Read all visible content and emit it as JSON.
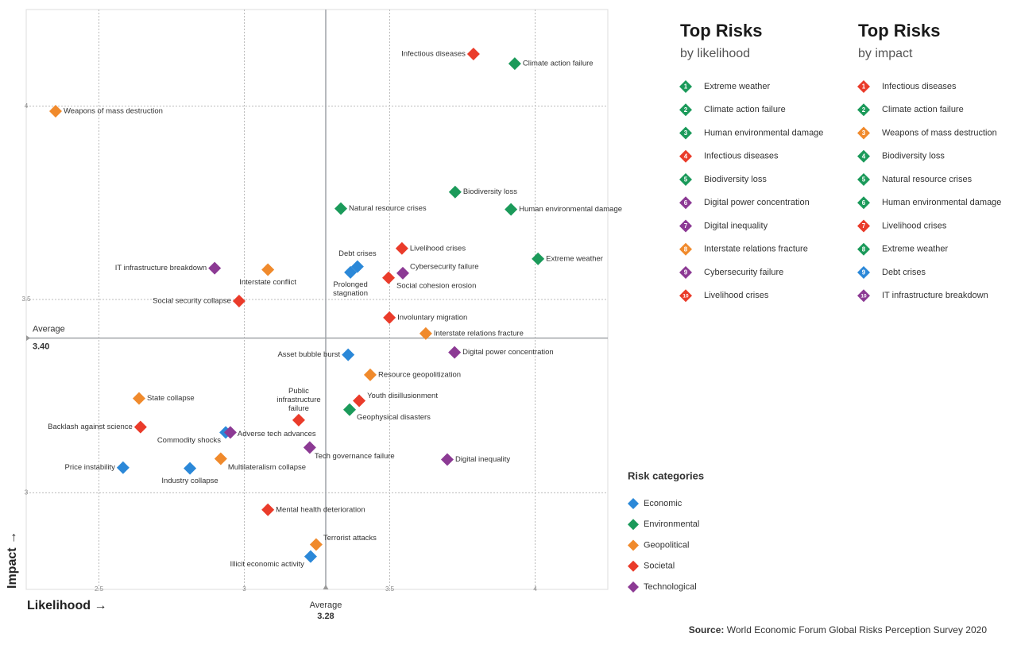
{
  "chart_data": {
    "type": "scatter",
    "x_label": "Likelihood →",
    "y_label": "Impact →",
    "xlim": [
      2.25,
      4.25
    ],
    "ylim": [
      2.75,
      4.25
    ],
    "xticks": [
      2.5,
      3,
      3.5,
      4
    ],
    "yticks": [
      3,
      3.5,
      4
    ],
    "grid": true,
    "average_label": "Average",
    "x_average": 3.28,
    "y_average": {
      "value": 3.4,
      "label": "3.40"
    },
    "legend_title": "Risk categories",
    "series": [
      {
        "name": "Economic",
        "color": "#2b88d8",
        "labels": [
          "Debt crises",
          "Prolonged stagnation",
          "Asset bubble burst",
          "Commodity shocks",
          "Price instability",
          "Industry collapse",
          "Illicit economic activity"
        ],
        "x": [
          3.389,
          3.365,
          3.357,
          2.936,
          2.583,
          2.813,
          3.228
        ],
        "y": [
          3.585,
          3.57,
          3.357,
          3.156,
          3.065,
          3.063,
          2.835
        ]
      },
      {
        "name": "Environmental",
        "color": "#1b9a5a",
        "labels": [
          "Climate action failure",
          "Biodiversity loss",
          "Natural resource crises",
          "Human environmental damage",
          "Extreme weather",
          "Geophysical disasters"
        ],
        "x": [
          3.93,
          3.725,
          3.332,
          3.917,
          4.01,
          3.362
        ],
        "y": [
          4.11,
          3.778,
          3.735,
          3.733,
          3.605,
          3.215
        ]
      },
      {
        "name": "Geopolitical",
        "color": "#f08a2c",
        "labels": [
          "Weapons of mass destruction",
          "Interstate conflict",
          "Interstate relations fracture",
          "Resource geopolitization",
          "State collapse",
          "Multilateralism collapse",
          "Terrorist attacks"
        ],
        "x": [
          2.351,
          3.081,
          3.624,
          3.433,
          2.638,
          2.919,
          3.247
        ],
        "y": [
          3.987,
          3.577,
          3.412,
          3.305,
          3.244,
          3.088,
          2.866
        ]
      },
      {
        "name": "Societal",
        "color": "#ea3b2a",
        "labels": [
          "Infectious diseases",
          "Livelihood crises",
          "Social cohesion erosion",
          "Social security collapse",
          "Involuntary migration",
          "Youth disillusionment",
          "Public infrastructure failure",
          "Backlash against science",
          "Mental health deterioration"
        ],
        "x": [
          3.788,
          3.542,
          3.496,
          2.982,
          3.499,
          3.395,
          3.187,
          2.643,
          3.081
        ],
        "y": [
          4.135,
          3.632,
          3.556,
          3.496,
          3.453,
          3.238,
          3.188,
          3.17,
          2.956
        ]
      },
      {
        "name": "Technological",
        "color": "#8c3a94",
        "labels": [
          "IT infrastructure breakdown",
          "Cybersecurity failure",
          "Digital power concentration",
          "Adverse tech advances",
          "Tech governance failure",
          "Digital inequality"
        ],
        "x": [
          2.898,
          3.545,
          3.723,
          2.952,
          3.225,
          3.698
        ],
        "y": [
          3.581,
          3.568,
          3.363,
          3.156,
          3.117,
          3.086
        ]
      }
    ],
    "top_risks": [
      {
        "title": "Top Risks",
        "subtitle": "by likelihood",
        "items": [
          {
            "rank": 1,
            "name": "Extreme weather",
            "color": "#1b9a5a"
          },
          {
            "rank": 2,
            "name": "Climate action failure",
            "color": "#1b9a5a"
          },
          {
            "rank": 3,
            "name": "Human environmental damage",
            "color": "#1b9a5a"
          },
          {
            "rank": 4,
            "name": "Infectious diseases",
            "color": "#ea3b2a"
          },
          {
            "rank": 5,
            "name": "Biodiversity loss",
            "color": "#1b9a5a"
          },
          {
            "rank": 6,
            "name": "Digital power concentration",
            "color": "#8c3a94"
          },
          {
            "rank": 7,
            "name": "Digital inequality",
            "color": "#8c3a94"
          },
          {
            "rank": 8,
            "name": "Interstate relations fracture",
            "color": "#f08a2c"
          },
          {
            "rank": 9,
            "name": "Cybersecurity failure",
            "color": "#8c3a94"
          },
          {
            "rank": 10,
            "name": "Livelihood crises",
            "color": "#ea3b2a"
          }
        ]
      },
      {
        "title": "Top Risks",
        "subtitle": "by impact",
        "items": [
          {
            "rank": 1,
            "name": "Infectious diseases",
            "color": "#ea3b2a"
          },
          {
            "rank": 2,
            "name": "Climate action failure",
            "color": "#1b9a5a"
          },
          {
            "rank": 3,
            "name": "Weapons of mass destruction",
            "color": "#f08a2c"
          },
          {
            "rank": 4,
            "name": "Biodiversity loss",
            "color": "#1b9a5a"
          },
          {
            "rank": 5,
            "name": "Natural resource crises",
            "color": "#1b9a5a"
          },
          {
            "rank": 6,
            "name": "Human environmental damage",
            "color": "#1b9a5a"
          },
          {
            "rank": 7,
            "name": "Livelihood crises",
            "color": "#ea3b2a"
          },
          {
            "rank": 8,
            "name": "Extreme weather",
            "color": "#1b9a5a"
          },
          {
            "rank": 9,
            "name": "Debt crises",
            "color": "#2b88d8"
          },
          {
            "rank": 10,
            "name": "IT infrastructure breakdown",
            "color": "#8c3a94"
          }
        ]
      }
    ],
    "source_label": "Source:",
    "source": "World Economic Forum Global Risks Perception Survey 2020"
  }
}
